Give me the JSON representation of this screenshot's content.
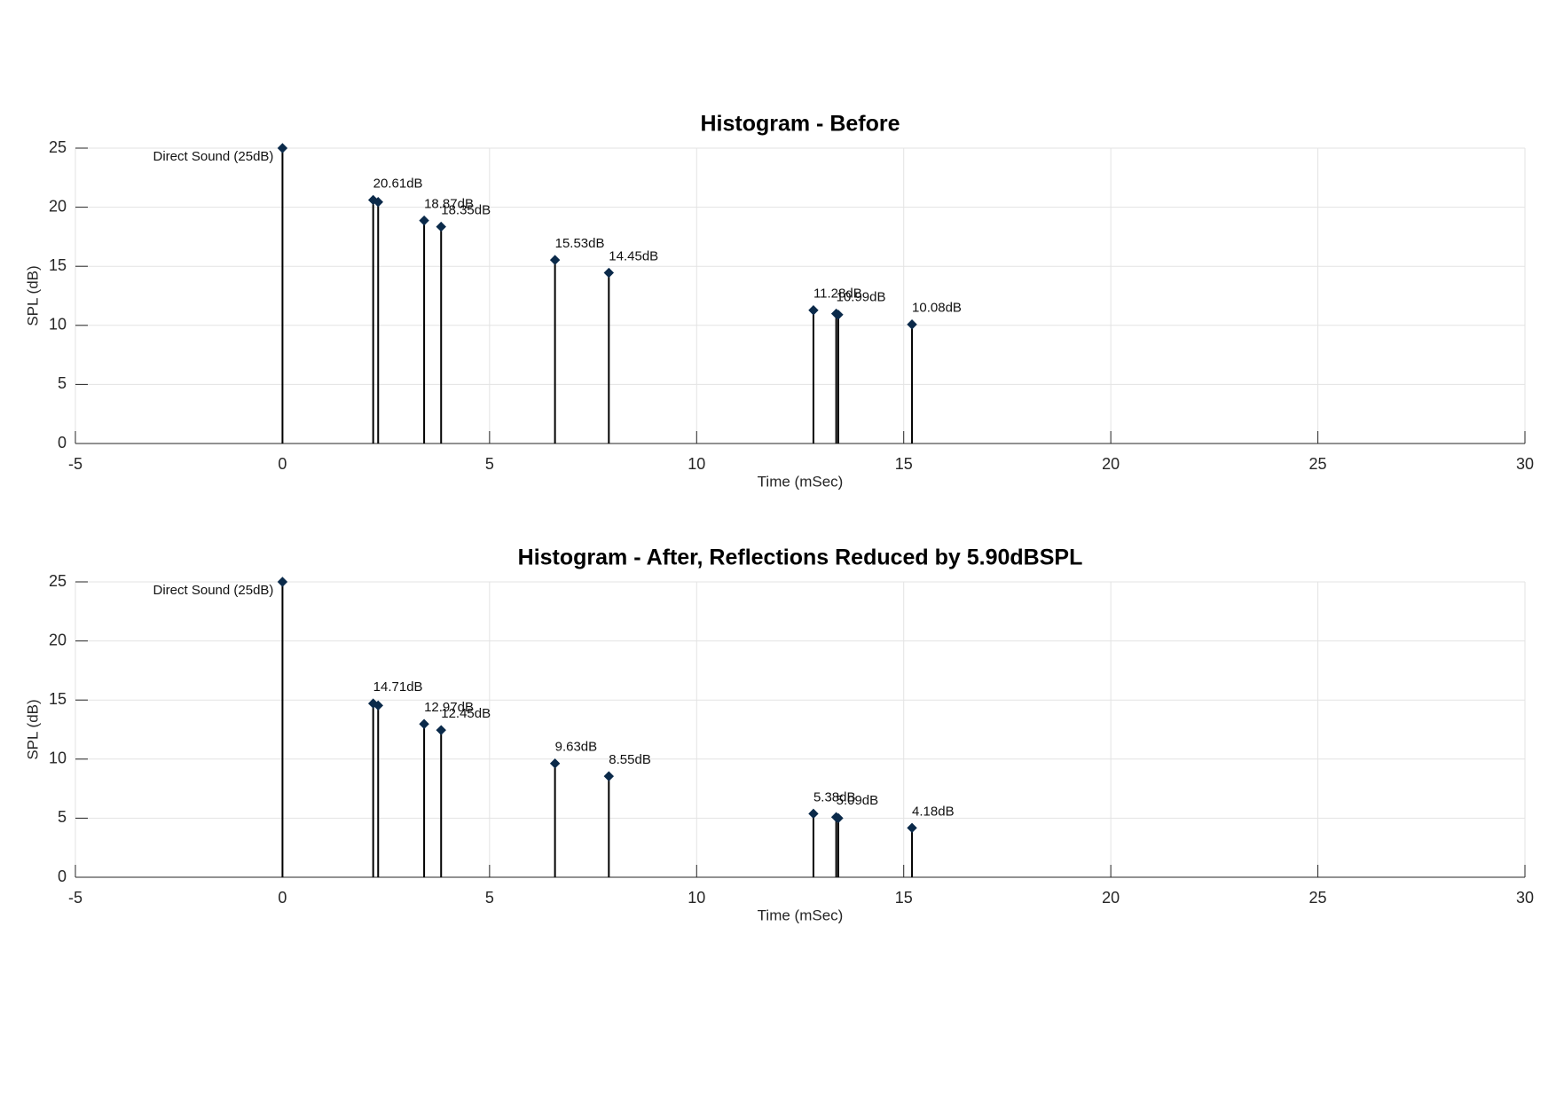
{
  "chart_data": [
    {
      "type": "stem",
      "title": "Histogram - Before",
      "x_label": "Time (mSec)",
      "y_label": "SPL (dB)",
      "x": [
        0,
        2.19,
        2.31,
        3.42,
        3.83,
        6.58,
        7.88,
        12.82,
        13.37,
        13.42,
        15.2
      ],
      "values": [
        25,
        20.61,
        20.44,
        18.87,
        18.35,
        15.53,
        14.45,
        11.28,
        10.99,
        10.9,
        10.08
      ],
      "value_labels": [
        "Direct Sound (25dB)",
        "20.61dB",
        null,
        "18.87dB",
        "18.35dB",
        "15.53dB",
        "14.45dB",
        "11.28dB",
        "10.99dB",
        null,
        "10.08dB"
      ],
      "color": "#000000",
      "marker_color": "#0b2a4a",
      "xlim": [
        -5,
        30
      ],
      "xticks": [
        -5,
        0,
        5,
        10,
        15,
        20,
        25,
        30
      ],
      "ylim": [
        0,
        25
      ],
      "yticks": [
        0,
        5,
        10,
        15,
        20,
        25
      ],
      "grid": true
    },
    {
      "type": "stem",
      "title": "Histogram - After, Reflections Reduced by 5.90dBSPL",
      "x_label": "Time (mSec)",
      "y_label": "SPL (dB)",
      "x": [
        0,
        2.19,
        2.31,
        3.42,
        3.83,
        6.58,
        7.88,
        12.82,
        13.37,
        13.42,
        15.2
      ],
      "values": [
        25,
        14.71,
        14.54,
        12.97,
        12.45,
        9.63,
        8.55,
        5.38,
        5.09,
        5.0,
        4.18
      ],
      "value_labels": [
        "Direct Sound (25dB)",
        "14.71dB",
        null,
        "12.97dB",
        "12.45dB",
        "9.63dB",
        "8.55dB",
        "5.38dB",
        "5.09dB",
        null,
        "4.18dB"
      ],
      "color": "#000000",
      "marker_color": "#0b2a4a",
      "xlim": [
        -5,
        30
      ],
      "xticks": [
        -5,
        0,
        5,
        10,
        15,
        20,
        25,
        30
      ],
      "ylim": [
        0,
        25
      ],
      "yticks": [
        0,
        5,
        10,
        15,
        20,
        25
      ],
      "grid": true
    }
  ]
}
